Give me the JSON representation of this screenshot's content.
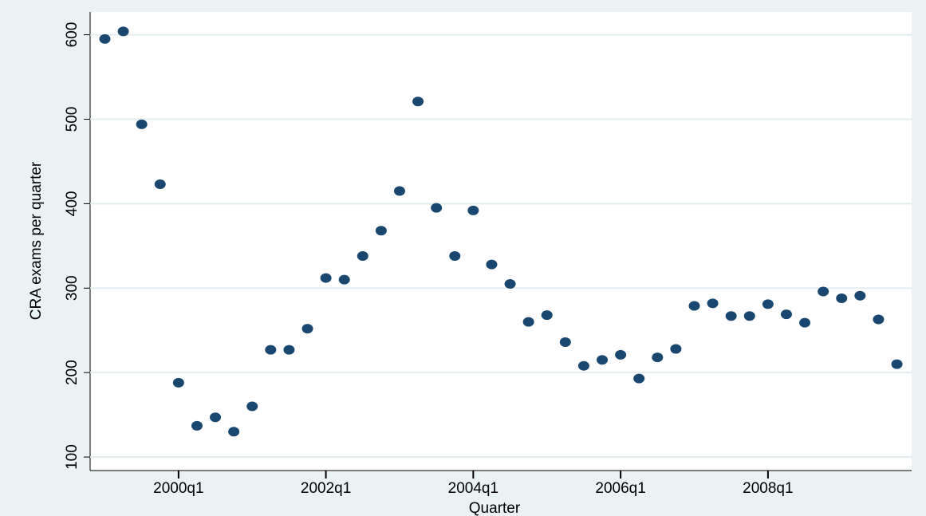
{
  "chart_data": {
    "type": "scatter",
    "x_label": "Quarter",
    "y_label": "CRA exams per quarter",
    "x": [
      1999,
      1999.25,
      1999.5,
      1999.75,
      2000,
      2000.25,
      2000.5,
      2000.75,
      2001,
      2001.25,
      2001.5,
      2001.75,
      2002,
      2002.25,
      2002.5,
      2002.75,
      2003,
      2003.25,
      2003.5,
      2003.75,
      2004,
      2004.25,
      2004.5,
      2004.75,
      2005,
      2005.25,
      2005.5,
      2005.75,
      2006,
      2006.25,
      2006.5,
      2006.75,
      2007,
      2007.25,
      2007.5,
      2007.75,
      2008,
      2008.25,
      2008.5,
      2008.75,
      2009,
      2009.25,
      2009.5,
      2009.75
    ],
    "values": [
      595,
      604,
      494,
      423,
      188,
      137,
      147,
      130,
      160,
      227,
      227,
      252,
      312,
      310,
      338,
      368,
      415,
      521,
      395,
      338,
      392,
      328,
      305,
      260,
      268,
      236,
      208,
      215,
      221,
      193,
      218,
      228,
      279,
      282,
      267,
      267,
      281,
      269,
      259,
      296,
      288,
      291,
      263,
      210
    ],
    "color": "#1a476f",
    "xlim": [
      1998.8,
      2009.95
    ],
    "ylim": [
      84,
      627
    ],
    "xticks": [
      {
        "value": 2000,
        "label": "2000q1"
      },
      {
        "value": 2002,
        "label": "2002q1"
      },
      {
        "value": 2004,
        "label": "2004q1"
      },
      {
        "value": 2006,
        "label": "2006q1"
      },
      {
        "value": 2008,
        "label": "2008q1"
      }
    ],
    "yticks": [
      100,
      200,
      300,
      400,
      500,
      600
    ],
    "grid": true
  }
}
